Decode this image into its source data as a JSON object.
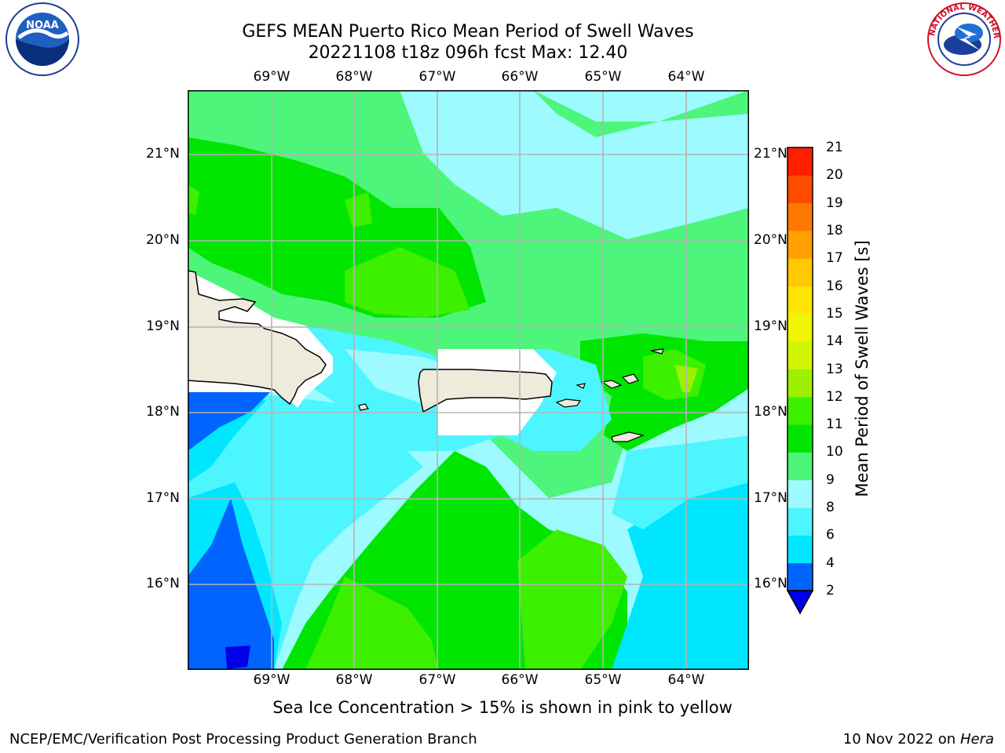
{
  "title": {
    "line1": "GEFS MEAN Puerto Rico Mean Period of Swell Waves",
    "line2": "20221108 t18z 096h fcst   Max: 12.40"
  },
  "map": {
    "lon_labels": [
      "69°W",
      "68°W",
      "67°W",
      "66°W",
      "65°W",
      "64°W"
    ],
    "lat_labels": [
      "21°N",
      "20°N",
      "19°N",
      "18°N",
      "17°N",
      "16°N"
    ]
  },
  "colorbar": {
    "label": "Mean Period of Swell Waves [s]",
    "ticks": [
      "21",
      "20",
      "19",
      "18",
      "17",
      "16",
      "15",
      "14",
      "13",
      "12",
      "11",
      "10",
      "9",
      "8",
      "6",
      "4",
      "2"
    ],
    "colors": [
      "#0000e6",
      "#0064ff",
      "#00e6ff",
      "#4df5ff",
      "#9dfbff",
      "#4df57a",
      "#00e600",
      "#3cf000",
      "#9cf000",
      "#d2f500",
      "#f0f500",
      "#ffe600",
      "#ffc800",
      "#ffa000",
      "#ff7800",
      "#ff4b00",
      "#ff1e00",
      "#ff0000"
    ]
  },
  "footer": {
    "note": "Sea Ice Concentration > 15% is shown in pink to yellow",
    "credit": "NCEP/EMC/Verification Post Processing Product Generation Branch",
    "date": "10 Nov 2022 on",
    "machine": "Hera"
  },
  "logos": {
    "noaa": "NOAA",
    "nws": "NATIONAL WEATHER SERVICE"
  }
}
